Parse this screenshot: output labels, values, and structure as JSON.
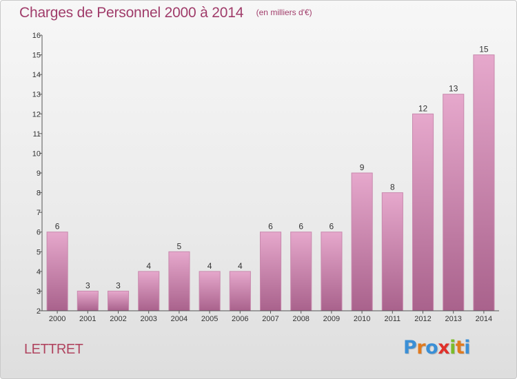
{
  "header": {
    "title": "Charges de Personnel 2000 à 2014",
    "subtitle": "(en milliers d'€)"
  },
  "footer": {
    "commune": "LETTRET",
    "logo_letters": [
      "P",
      "r",
      "o",
      "x",
      "i",
      "t",
      "i"
    ],
    "logo_colors": [
      "#3a8fd6",
      "#e07a1f",
      "#3a8fd6",
      "#e0302a",
      "#7cbc2a",
      "#e07a1f",
      "#3a8fd6"
    ]
  },
  "colors": {
    "bar_top": "#e6a8cc",
    "bar_bottom": "#a9628c",
    "bar_border": "#c889ad",
    "axis": "#555555",
    "grid": "#cfcfcf"
  },
  "chart_data": {
    "type": "bar",
    "categories": [
      "2000",
      "2001",
      "2002",
      "2003",
      "2004",
      "2005",
      "2006",
      "2007",
      "2008",
      "2009",
      "2010",
      "2011",
      "2012",
      "2013",
      "2014"
    ],
    "values": [
      6,
      3,
      3,
      4,
      5,
      4,
      4,
      6,
      6,
      6,
      9,
      8,
      12,
      13,
      15
    ],
    "yticks": [
      "2",
      "3",
      "4",
      "5",
      "6",
      "7",
      "8",
      "9",
      "10",
      "11",
      "12",
      "13",
      "14",
      "15",
      "16"
    ],
    "ylim": [
      2,
      16
    ],
    "grid": false
  }
}
